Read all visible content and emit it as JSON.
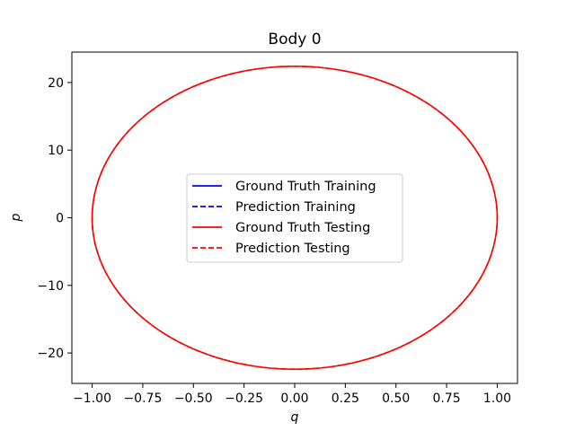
{
  "chart_data": {
    "type": "line",
    "title": "Body 0",
    "xlabel": "q",
    "ylabel": "p",
    "xlim": [
      -1.1,
      1.1
    ],
    "ylim": [
      -24.5,
      24.5
    ],
    "xticks": [
      -1.0,
      -0.75,
      -0.5,
      -0.25,
      0.0,
      0.25,
      0.5,
      0.75,
      1.0
    ],
    "xtick_labels": [
      "−1.00",
      "−0.75",
      "−0.50",
      "−0.25",
      "0.00",
      "0.25",
      "0.50",
      "0.75",
      "1.00"
    ],
    "yticks": [
      -20,
      -10,
      0,
      10,
      20
    ],
    "ytick_labels": [
      "−20",
      "−10",
      "0",
      "10",
      "20"
    ],
    "grid": false,
    "legend_position": "center",
    "series": [
      {
        "name": "Ground Truth Training",
        "color": "#0000ff",
        "style": "solid",
        "visible_in_plot": false,
        "orbit": {
          "q_amplitude": 1.0,
          "p_amplitude": 22.4
        }
      },
      {
        "name": "Prediction Training",
        "color": "#0000ff",
        "style": "dashed",
        "visible_in_plot": false,
        "orbit": {
          "q_amplitude": 1.0,
          "p_amplitude": 22.4
        }
      },
      {
        "name": "Ground Truth Testing",
        "color": "#ff0000",
        "style": "solid",
        "visible_in_plot": true,
        "orbit": {
          "q_amplitude": 1.0,
          "p_amplitude": 22.4
        }
      },
      {
        "name": "Prediction Testing",
        "color": "#ff0000",
        "style": "dashed",
        "visible_in_plot": true,
        "orbit": {
          "q_amplitude": 1.0,
          "p_amplitude": 22.4
        }
      }
    ]
  }
}
